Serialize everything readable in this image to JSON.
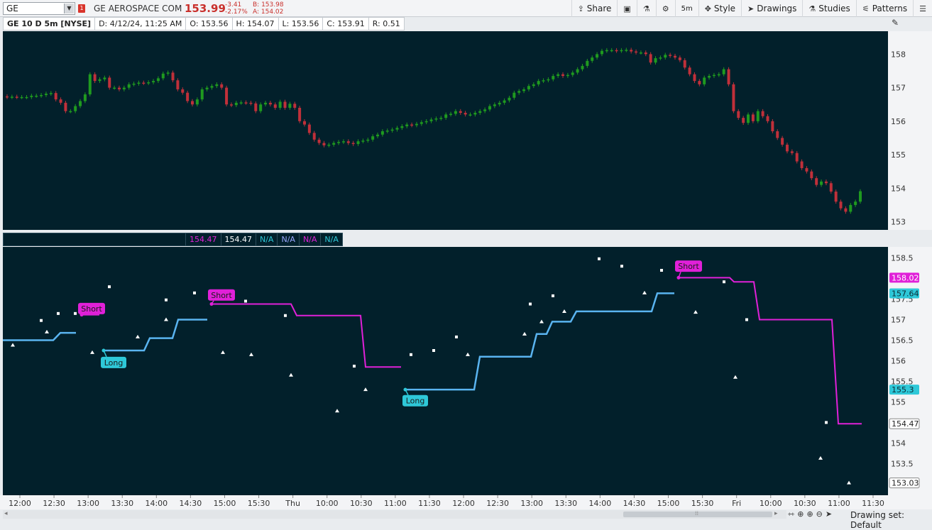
{
  "toolbar": {
    "symbol": "GE",
    "alert_badge": "1",
    "company": "GE AEROSPACE COM",
    "last_price": "153.99",
    "change": "-3.41",
    "change_pct": "-2.17%",
    "bid": "B: 153.98",
    "ask": "A: 154.02",
    "buttons": {
      "share": "Share",
      "timeframe": "5m",
      "style": "Style",
      "drawings": "Drawings",
      "studies": "Studies",
      "patterns": "Patterns"
    }
  },
  "infobar": {
    "title": "GE 10 D 5m [NYSE]",
    "date": "D: 4/12/24, 11:25 AM",
    "open": "O: 153.56",
    "high": "H: 154.07",
    "low": "L: 153.56",
    "close": "C: 153.91",
    "range": "R: 0.51"
  },
  "study_header": {
    "values": [
      "154.47",
      "154.47",
      "N/A",
      "N/A",
      "N/A",
      "N/A"
    ],
    "colors": [
      "#e020d8",
      "#ffffff",
      "#2ec8d8",
      "#9aa8ff",
      "#e020d8",
      "#2ec8d8"
    ]
  },
  "colors": {
    "background": "#02202b",
    "up": "#1f9a1f",
    "down": "#c0303a",
    "long_line": "#5ab4f0",
    "short_line": "#e020d8",
    "axis_text": "#333333"
  },
  "chart_data": [
    {
      "type": "candlestick",
      "title": "GE 10 D 5m [NYSE]",
      "ylim": [
        152.8,
        158.6
      ],
      "yticks": [
        153,
        154,
        155,
        156,
        157,
        158
      ],
      "series": [
        {
          "name": "close",
          "values": [
            156.72,
            156.73,
            156.72,
            156.72,
            156.72,
            156.76,
            156.76,
            156.78,
            156.82,
            156.84,
            156.65,
            156.55,
            156.3,
            156.3,
            156.45,
            156.6,
            156.8,
            157.4,
            157.2,
            157.25,
            157.3,
            157.0,
            157.0,
            156.95,
            157.0,
            157.1,
            157.12,
            157.15,
            157.14,
            157.16,
            157.2,
            157.28,
            157.42,
            157.45,
            157.22,
            156.95,
            156.85,
            156.6,
            156.5,
            156.65,
            156.95,
            157.0,
            157.05,
            157.1,
            157.0,
            156.5,
            156.48,
            156.55,
            156.56,
            156.55,
            156.53,
            156.3,
            156.5,
            156.55,
            156.5,
            156.4,
            156.58,
            156.4,
            156.52,
            156.4,
            156.0,
            155.9,
            155.65,
            155.45,
            155.35,
            155.28,
            155.3,
            155.35,
            155.38,
            155.4,
            155.35,
            155.32,
            155.4,
            155.42,
            155.45,
            155.55,
            155.6,
            155.7,
            155.72,
            155.75,
            155.8,
            155.85,
            155.9,
            155.88,
            155.92,
            155.97,
            156.0,
            156.05,
            156.08,
            156.1,
            156.2,
            156.22,
            156.3,
            156.25,
            156.2,
            156.2,
            156.25,
            156.3,
            156.35,
            156.45,
            156.5,
            156.55,
            156.62,
            156.7,
            156.85,
            156.9,
            156.95,
            157.05,
            157.1,
            157.2,
            157.22,
            157.25,
            157.35,
            157.4,
            157.35,
            157.38,
            157.45,
            157.55,
            157.65,
            157.8,
            157.9,
            158.0,
            158.1,
            158.12,
            158.12,
            158.1,
            158.12,
            158.13,
            158.08,
            158.05,
            158.05,
            158.0,
            157.75,
            157.88,
            157.9,
            157.98,
            157.95,
            157.9,
            157.82,
            157.6,
            157.4,
            157.2,
            157.1,
            157.3,
            157.35,
            157.38,
            157.4,
            157.55,
            157.1,
            156.3,
            156.1,
            155.95,
            156.2,
            156.0,
            156.3,
            156.15,
            156.0,
            155.7,
            155.5,
            155.3,
            155.1,
            155.05,
            154.8,
            154.6,
            154.5,
            154.3,
            154.1,
            154.2,
            154.15,
            153.9,
            153.6,
            153.4,
            153.3,
            153.5,
            153.6,
            153.91
          ]
        }
      ],
      "x_tick_labels": [
        "12:00",
        "12:30",
        "13:00",
        "13:30",
        "14:00",
        "14:30",
        "15:00",
        "15:30",
        "Thu",
        "10:00",
        "10:30",
        "11:00",
        "11:30",
        "12:00",
        "12:30",
        "13:00",
        "13:30",
        "14:00",
        "14:30",
        "15:00",
        "15:30",
        "Fri",
        "10:00",
        "10:30",
        "11:00",
        "11:30"
      ]
    },
    {
      "type": "line",
      "ylim": [
        152.8,
        158.7
      ],
      "yticks": [
        "153",
        "153.5",
        "154",
        "154.5",
        "155",
        "155.5",
        "156",
        "156.5",
        "157",
        "157.5",
        "158",
        "158.5"
      ],
      "axis_badges": [
        {
          "value": "158.02",
          "color": "#e020d8"
        },
        {
          "value": "157.64",
          "color": "#2ec8d8"
        },
        {
          "value": "155.3",
          "color": "#2ec8d8"
        },
        {
          "value": "154.47",
          "color": "#ffffff"
        },
        {
          "value": "153.03",
          "color": "#ffffff"
        }
      ],
      "signal_labels": [
        {
          "text": "Short",
          "color": "#e020d8"
        },
        {
          "text": "Long",
          "color": "#2ec8d8"
        },
        {
          "text": "Short",
          "color": "#e020d8"
        },
        {
          "text": "Long",
          "color": "#2ec8d8"
        },
        {
          "text": "Short",
          "color": "#e020d8"
        }
      ]
    }
  ],
  "status": {
    "drawing_set": "Drawing set: Default"
  }
}
